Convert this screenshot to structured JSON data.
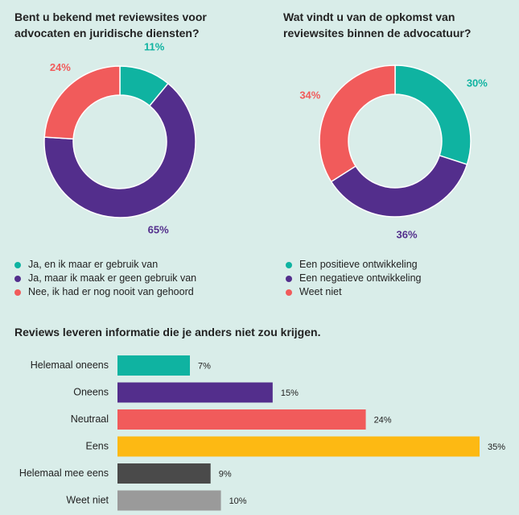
{
  "colors": {
    "teal": "#0fb3a1",
    "purple": "#532e8c",
    "coral": "#f15b5b",
    "yellow": "#fdb913",
    "dark_gray": "#4a4a4a",
    "gray": "#9a9a9a",
    "background": "#d9ede9"
  },
  "chart_data": [
    {
      "type": "pie",
      "title": "Bent u bekend met reviewsites voor advocaten en juridische diensten?",
      "categories": [
        "Ja, en ik maar er gebruik van",
        "Ja, maar ik maak er geen gebruik van",
        "Nee, ik had er nog nooit van gehoord"
      ],
      "values": [
        11,
        65,
        24
      ],
      "labels": [
        "11%",
        "65%",
        "24%"
      ],
      "colors": [
        "#0fb3a1",
        "#532e8c",
        "#f15b5b"
      ]
    },
    {
      "type": "pie",
      "title": "Wat vindt u van de opkomst van reviewsites binnen de advocatuur?",
      "categories": [
        "Een positieve ontwikkeling",
        "Een negatieve ontwikkeling",
        "Weet niet"
      ],
      "values": [
        30,
        36,
        34
      ],
      "labels": [
        "30%",
        "36%",
        "34%"
      ],
      "colors": [
        "#0fb3a1",
        "#532e8c",
        "#f15b5b"
      ]
    },
    {
      "type": "bar",
      "orientation": "horizontal",
      "title": "Reviews leveren informatie die je anders niet zou krijgen.",
      "categories": [
        "Helemaal oneens",
        "Oneens",
        "Neutraal",
        "Eens",
        "Helemaal mee eens",
        "Weet niet"
      ],
      "values": [
        7,
        15,
        24,
        35,
        9,
        10
      ],
      "labels": [
        "7%",
        "15%",
        "24%",
        "35%",
        "9%",
        "10%"
      ],
      "colors": [
        "#0fb3a1",
        "#532e8c",
        "#f15b5b",
        "#fdb913",
        "#4a4a4a",
        "#9a9a9a"
      ],
      "xlim": [
        0,
        35
      ]
    }
  ]
}
